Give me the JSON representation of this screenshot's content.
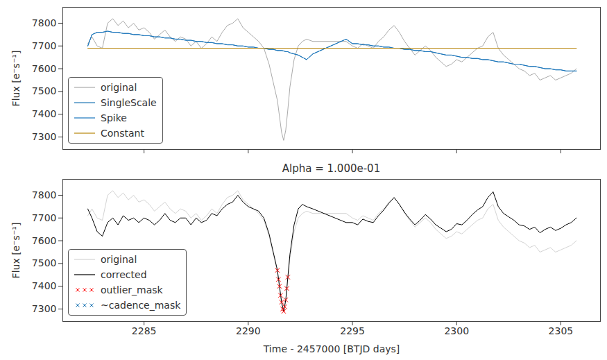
{
  "chart_data": [
    {
      "type": "line",
      "ylabel": "Flux [e⁻s⁻¹]",
      "xlim": [
        2281.1,
        2306.9
      ],
      "ylim": [
        7245,
        7870
      ],
      "xticks": [
        2285,
        2290,
        2295,
        2300,
        2305
      ],
      "yticks": [
        7300,
        7400,
        7500,
        7600,
        7700,
        7800
      ],
      "tick_labels": "y",
      "grid": false,
      "legend": "lower left",
      "x": [
        2282.3,
        2282.5,
        2282.75,
        2283.0,
        2283.25,
        2283.5,
        2283.75,
        2284.0,
        2284.25,
        2284.5,
        2284.75,
        2285.0,
        2285.25,
        2285.5,
        2285.75,
        2286.0,
        2286.25,
        2286.5,
        2286.75,
        2287.0,
        2287.25,
        2287.5,
        2287.75,
        2288.0,
        2288.25,
        2288.5,
        2288.75,
        2289.0,
        2289.25,
        2289.5,
        2289.75,
        2290.0,
        2290.25,
        2290.5,
        2290.75,
        2291.0,
        2291.2,
        2291.4,
        2291.5,
        2291.6,
        2291.7,
        2291.8,
        2291.9,
        2292.0,
        2292.2,
        2292.4,
        2292.6,
        2292.8,
        2293.1,
        2294.7,
        2295.0,
        2295.25,
        2295.5,
        2295.75,
        2296.0,
        2296.25,
        2296.5,
        2296.75,
        2297.0,
        2297.25,
        2297.5,
        2297.75,
        2298.0,
        2298.25,
        2298.5,
        2298.75,
        2299.0,
        2299.25,
        2299.5,
        2299.75,
        2300.0,
        2300.25,
        2300.5,
        2300.75,
        2301.0,
        2301.25,
        2301.5,
        2301.75,
        2302.0,
        2302.25,
        2302.5,
        2302.75,
        2303.0,
        2303.25,
        2303.5,
        2303.75,
        2304.0,
        2304.25,
        2304.5,
        2304.75,
        2305.0,
        2305.25,
        2305.5,
        2305.75
      ],
      "series": [
        {
          "name": "original",
          "color": "#aaaaaa",
          "values": [
            7710,
            7740,
            7700,
            7690,
            7800,
            7820,
            7790,
            7810,
            7780,
            7800,
            7770,
            7780,
            7760,
            7730,
            7750,
            7770,
            7740,
            7720,
            7740,
            7730,
            7700,
            7720,
            7690,
            7710,
            7740,
            7720,
            7760,
            7790,
            7800,
            7820,
            7780,
            7760,
            7740,
            7720,
            7690,
            7620,
            7540,
            7460,
            7390,
            7320,
            7285,
            7330,
            7420,
            7520,
            7640,
            7700,
            7720,
            7730,
            7720,
            7720,
            7700,
            7690,
            7710,
            7700,
            7690,
            7720,
            7740,
            7770,
            7790,
            7760,
            7720,
            7690,
            7660,
            7680,
            7700,
            7680,
            7650,
            7630,
            7610,
            7620,
            7640,
            7630,
            7650,
            7670,
            7690,
            7700,
            7740,
            7760,
            7690,
            7660,
            7640,
            7620,
            7600,
            7590,
            7570,
            7580,
            7550,
            7560,
            7570,
            7550,
            7560,
            7570,
            7580,
            7600
          ]
        },
        {
          "name": "SingleScale",
          "color": "#1f77b4",
          "values": [
            7700,
            7750,
            7760,
            7760,
            7765,
            7760,
            7760,
            7755,
            7755,
            7750,
            7750,
            7745,
            7745,
            7740,
            7740,
            7735,
            7735,
            7730,
            7730,
            7725,
            7725,
            7720,
            7720,
            7715,
            7715,
            7710,
            7710,
            7705,
            7705,
            7700,
            7700,
            7695,
            7695,
            7690,
            7690,
            7685,
            7685,
            7680,
            7680,
            7680,
            7678,
            7675,
            7675,
            7670,
            7665,
            7660,
            7650,
            7640,
            7665,
            7730,
            7710,
            7710,
            7705,
            7705,
            7700,
            7700,
            7695,
            7695,
            7690,
            7690,
            7685,
            7685,
            7680,
            7680,
            7675,
            7675,
            7670,
            7665,
            7660,
            7660,
            7655,
            7650,
            7650,
            7645,
            7645,
            7640,
            7640,
            7635,
            7630,
            7630,
            7625,
            7620,
            7620,
            7615,
            7610,
            7610,
            7605,
            7600,
            7600,
            7595,
            7595,
            7590,
            7590,
            7590
          ]
        },
        {
          "name": "Spike",
          "color": "#1a75bc",
          "values": [
            7700,
            7750,
            7760,
            7760,
            7765,
            7760,
            7760,
            7755,
            7755,
            7750,
            7750,
            7745,
            7745,
            7740,
            7740,
            7735,
            7735,
            7730,
            7730,
            7725,
            7725,
            7720,
            7720,
            7715,
            7715,
            7710,
            7710,
            7705,
            7705,
            7700,
            7700,
            7695,
            7695,
            7690,
            7690,
            7685,
            7685,
            7680,
            7680,
            7680,
            7678,
            7675,
            7675,
            7670,
            7665,
            7660,
            7650,
            7640,
            7665,
            7730,
            7710,
            7710,
            7705,
            7705,
            7700,
            7700,
            7695,
            7695,
            7690,
            7690,
            7685,
            7685,
            7680,
            7680,
            7675,
            7675,
            7670,
            7665,
            7660,
            7660,
            7655,
            7650,
            7650,
            7645,
            7645,
            7640,
            7640,
            7635,
            7630,
            7630,
            7625,
            7620,
            7620,
            7615,
            7610,
            7610,
            7605,
            7600,
            7600,
            7595,
            7595,
            7590,
            7590,
            7590
          ]
        },
        {
          "name": "Constant",
          "color": "#b8860b",
          "x": [
            2282.3,
            2305.75
          ],
          "values": [
            7690,
            7690
          ]
        }
      ]
    },
    {
      "type": "line",
      "title": "Alpha = 1.000e-01",
      "xlabel": "Time - 2457000 [BTJD days]",
      "ylabel": "Flux [e⁻s⁻¹]",
      "xlim": [
        2281.1,
        2306.9
      ],
      "ylim": [
        7245,
        7870
      ],
      "xticks": [
        2285,
        2290,
        2295,
        2300,
        2305
      ],
      "yticks": [
        7300,
        7400,
        7500,
        7600,
        7700,
        7800
      ],
      "grid": false,
      "legend": "lower left",
      "x": [
        2282.3,
        2282.5,
        2282.75,
        2283.0,
        2283.25,
        2283.5,
        2283.75,
        2284.0,
        2284.25,
        2284.5,
        2284.75,
        2285.0,
        2285.25,
        2285.5,
        2285.75,
        2286.0,
        2286.25,
        2286.5,
        2286.75,
        2287.0,
        2287.25,
        2287.5,
        2287.75,
        2288.0,
        2288.25,
        2288.5,
        2288.75,
        2289.0,
        2289.25,
        2289.5,
        2289.75,
        2290.0,
        2290.25,
        2290.5,
        2290.75,
        2291.0,
        2291.2,
        2291.4,
        2291.5,
        2291.6,
        2291.7,
        2291.8,
        2291.9,
        2292.0,
        2292.2,
        2292.4,
        2292.6,
        2292.8,
        2293.1,
        2294.7,
        2295.0,
        2295.25,
        2295.5,
        2295.75,
        2296.0,
        2296.25,
        2296.5,
        2296.75,
        2297.0,
        2297.25,
        2297.5,
        2297.75,
        2298.0,
        2298.25,
        2298.5,
        2298.75,
        2299.0,
        2299.25,
        2299.5,
        2299.75,
        2300.0,
        2300.25,
        2300.5,
        2300.75,
        2301.0,
        2301.25,
        2301.5,
        2301.75,
        2302.0,
        2302.25,
        2302.5,
        2302.75,
        2303.0,
        2303.25,
        2303.5,
        2303.75,
        2304.0,
        2304.25,
        2304.5,
        2304.75,
        2305.0,
        2305.25,
        2305.5,
        2305.75
      ],
      "series": [
        {
          "name": "original",
          "color": "#d3d3d3",
          "values": [
            7710,
            7740,
            7700,
            7690,
            7800,
            7820,
            7790,
            7810,
            7780,
            7800,
            7770,
            7780,
            7760,
            7730,
            7750,
            7770,
            7740,
            7720,
            7740,
            7730,
            7700,
            7720,
            7690,
            7710,
            7740,
            7720,
            7760,
            7790,
            7800,
            7820,
            7780,
            7760,
            7740,
            7720,
            7690,
            7620,
            7540,
            7460,
            7390,
            7320,
            7285,
            7330,
            7420,
            7520,
            7640,
            7700,
            7720,
            7730,
            7720,
            7720,
            7700,
            7690,
            7710,
            7700,
            7690,
            7720,
            7740,
            7770,
            7790,
            7760,
            7720,
            7690,
            7660,
            7680,
            7700,
            7680,
            7650,
            7630,
            7610,
            7620,
            7640,
            7630,
            7650,
            7670,
            7690,
            7700,
            7740,
            7760,
            7690,
            7660,
            7640,
            7620,
            7600,
            7590,
            7570,
            7580,
            7550,
            7560,
            7570,
            7550,
            7560,
            7570,
            7580,
            7600
          ]
        },
        {
          "name": "corrected",
          "color": "#000000",
          "values": [
            7740,
            7700,
            7640,
            7620,
            7680,
            7700,
            7670,
            7710,
            7690,
            7700,
            7680,
            7700,
            7690,
            7670,
            7690,
            7720,
            7690,
            7680,
            7700,
            7700,
            7670,
            7700,
            7680,
            7690,
            7720,
            7710,
            7740,
            7760,
            7770,
            7800,
            7770,
            7750,
            7740,
            7730,
            7700,
            7630,
            7550,
            7470,
            7400,
            7330,
            7290,
            7340,
            7440,
            7540,
            7670,
            7740,
            7760,
            7750,
            7740,
            7680,
            7680,
            7670,
            7695,
            7685,
            7680,
            7710,
            7735,
            7765,
            7790,
            7760,
            7725,
            7695,
            7670,
            7690,
            7715,
            7695,
            7670,
            7655,
            7640,
            7650,
            7675,
            7670,
            7690,
            7715,
            7735,
            7750,
            7790,
            7815,
            7750,
            7720,
            7705,
            7690,
            7670,
            7665,
            7650,
            7660,
            7635,
            7650,
            7660,
            7645,
            7655,
            7670,
            7680,
            7700
          ]
        },
        {
          "name": "outlier_mask",
          "color": "#ff0000",
          "type": "scatter",
          "marker": "x",
          "x": [
            2291.4,
            2291.45,
            2291.5,
            2291.55,
            2291.6,
            2291.65,
            2291.7,
            2291.75,
            2291.8,
            2291.85,
            2291.9
          ],
          "values": [
            7470,
            7430,
            7400,
            7360,
            7330,
            7300,
            7290,
            7310,
            7340,
            7390,
            7440
          ]
        },
        {
          "name": "~cadence_mask",
          "color": "#1f77b4",
          "type": "scatter",
          "marker": "x",
          "x": [],
          "values": []
        }
      ]
    }
  ]
}
